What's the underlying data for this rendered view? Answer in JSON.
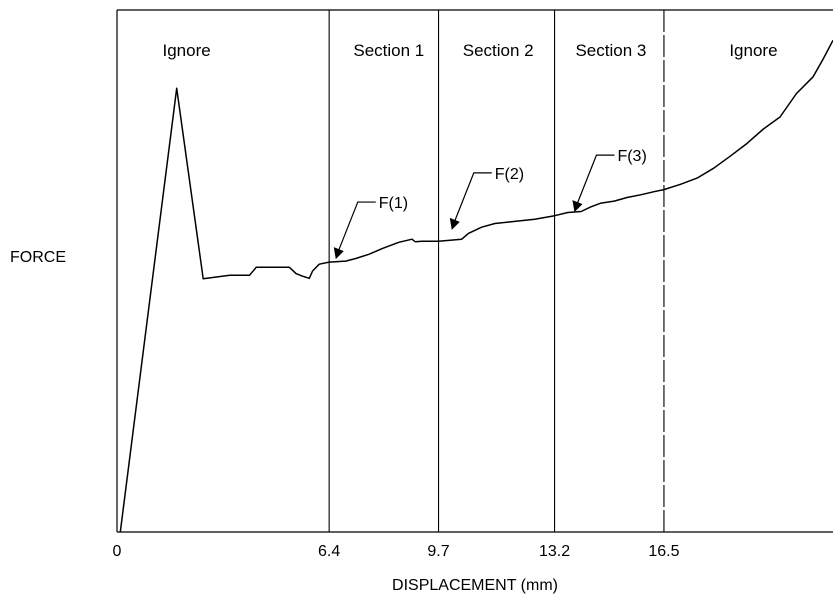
{
  "chart_data": {
    "type": "line",
    "title": "",
    "xlabel": "DISPLACEMENT (mm)",
    "ylabel": "FORCE",
    "xlim": [
      0,
      21.6
    ],
    "ylim": [
      0,
      100
    ],
    "x_ticks": [
      {
        "value": 0,
        "label": "0"
      },
      {
        "value": 6.4,
        "label": "6.4"
      },
      {
        "value": 9.7,
        "label": "9.7"
      },
      {
        "value": 13.2,
        "label": "13.2"
      },
      {
        "value": 16.5,
        "label": "16.5"
      }
    ],
    "grid": false,
    "series": [
      {
        "x": [
          0.1,
          1.8,
          2.6,
          3.4,
          3.6,
          4.0,
          4.2,
          4.5,
          4.9,
          5.2,
          5.4,
          5.6,
          5.8,
          5.9,
          6.1,
          6.4,
          6.9,
          7.2,
          7.6,
          8.0,
          8.5,
          8.9,
          9.0,
          9.2,
          9.7,
          10.4,
          10.6,
          11.0,
          11.4,
          12.0,
          12.6,
          13.2,
          13.6,
          14.0,
          14.3,
          14.6,
          15.0,
          15.4,
          15.8,
          16.2,
          16.5,
          17.0,
          17.5,
          18.0,
          18.5,
          19.0,
          19.5,
          20.0,
          20.5,
          21.0,
          21.3,
          21.6
        ],
        "y": [
          0,
          85,
          48.5,
          49.2,
          49.2,
          49.2,
          50.7,
          50.7,
          50.7,
          50.7,
          49.5,
          49.0,
          48.6,
          50.0,
          51.3,
          51.7,
          51.9,
          52.4,
          53.2,
          54.3,
          55.5,
          56.1,
          55.6,
          55.7,
          55.7,
          56.1,
          57.2,
          58.4,
          59.1,
          59.5,
          59.9,
          60.6,
          61.2,
          61.4,
          62.3,
          63.0,
          63.4,
          64.1,
          64.6,
          65.2,
          65.6,
          66.6,
          67.8,
          69.7,
          72.0,
          74.4,
          77.2,
          79.5,
          84.0,
          87.2,
          90.6,
          94.2
        ]
      }
    ],
    "boundaries": [
      {
        "x": 6.4,
        "style": "solid"
      },
      {
        "x": 9.7,
        "style": "solid"
      },
      {
        "x": 13.2,
        "style": "solid"
      },
      {
        "x": 16.5,
        "style": "dashed"
      }
    ],
    "regions": [
      {
        "label": "Ignore",
        "x_center": 2.1
      },
      {
        "label": "Section 1",
        "x_center": 8.2
      },
      {
        "label": "Section 2",
        "x_center": 11.5
      },
      {
        "label": "Section 3",
        "x_center": 14.9
      },
      {
        "label": "Ignore",
        "x_center": 19.2
      }
    ],
    "annotations": [
      {
        "label": "F(1)",
        "x": 6.6,
        "y": 51.9
      },
      {
        "label": "F(2)",
        "x": 10.1,
        "y": 57.5
      },
      {
        "label": "F(3)",
        "x": 13.8,
        "y": 60.9
      }
    ]
  }
}
